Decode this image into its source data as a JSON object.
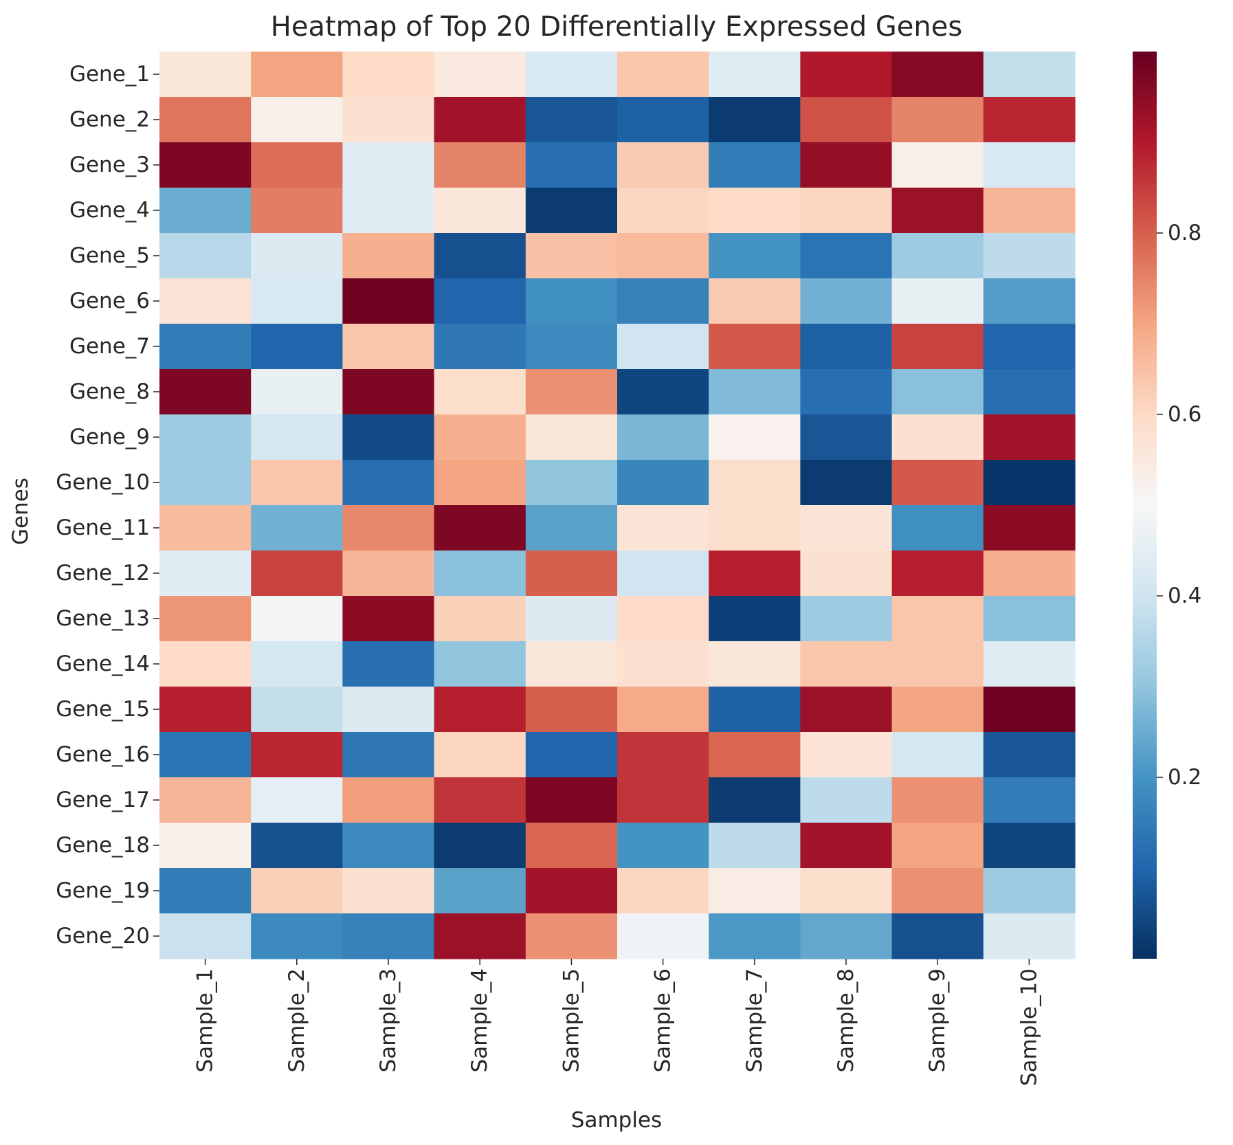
{
  "chart_data": {
    "type": "heatmap",
    "title": "Heatmap of Top 20 Differentially Expressed Genes",
    "xlabel": "Samples",
    "ylabel": "Genes",
    "x_categories": [
      "Sample_1",
      "Sample_2",
      "Sample_3",
      "Sample_4",
      "Sample_5",
      "Sample_6",
      "Sample_7",
      "Sample_8",
      "Sample_9",
      "Sample_10"
    ],
    "y_categories": [
      "Gene_1",
      "Gene_2",
      "Gene_3",
      "Gene_4",
      "Gene_5",
      "Gene_6",
      "Gene_7",
      "Gene_8",
      "Gene_9",
      "Gene_10",
      "Gene_11",
      "Gene_12",
      "Gene_13",
      "Gene_14",
      "Gene_15",
      "Gene_16",
      "Gene_17",
      "Gene_18",
      "Gene_19",
      "Gene_20"
    ],
    "values": [
      [
        0.56,
        0.7,
        0.6,
        0.55,
        0.42,
        0.64,
        0.44,
        0.9,
        0.96,
        0.38
      ],
      [
        0.77,
        0.53,
        0.58,
        0.92,
        0.07,
        0.09,
        0.02,
        0.82,
        0.75,
        0.88
      ],
      [
        0.97,
        0.78,
        0.44,
        0.75,
        0.12,
        0.63,
        0.15,
        0.94,
        0.53,
        0.42
      ],
      [
        0.25,
        0.76,
        0.44,
        0.56,
        0.02,
        0.61,
        0.6,
        0.61,
        0.93,
        0.67
      ],
      [
        0.36,
        0.43,
        0.68,
        0.06,
        0.65,
        0.66,
        0.2,
        0.13,
        0.32,
        0.37
      ],
      [
        0.57,
        0.42,
        0.99,
        0.1,
        0.19,
        0.16,
        0.63,
        0.26,
        0.46,
        0.22
      ],
      [
        0.15,
        0.1,
        0.64,
        0.14,
        0.18,
        0.4,
        0.81,
        0.09,
        0.84,
        0.1
      ],
      [
        0.97,
        0.46,
        0.97,
        0.59,
        0.73,
        0.04,
        0.28,
        0.12,
        0.29,
        0.12
      ],
      [
        0.32,
        0.41,
        0.05,
        0.68,
        0.56,
        0.27,
        0.52,
        0.07,
        0.58,
        0.92
      ],
      [
        0.32,
        0.64,
        0.12,
        0.7,
        0.3,
        0.17,
        0.59,
        0.02,
        0.81,
        0.01
      ],
      [
        0.66,
        0.26,
        0.74,
        0.97,
        0.23,
        0.57,
        0.59,
        0.57,
        0.19,
        0.95
      ],
      [
        0.44,
        0.84,
        0.67,
        0.29,
        0.8,
        0.4,
        0.89,
        0.58,
        0.89,
        0.68
      ],
      [
        0.72,
        0.49,
        0.95,
        0.62,
        0.43,
        0.6,
        0.03,
        0.32,
        0.64,
        0.29
      ],
      [
        0.6,
        0.41,
        0.12,
        0.3,
        0.56,
        0.58,
        0.56,
        0.64,
        0.64,
        0.44
      ],
      [
        0.89,
        0.38,
        0.43,
        0.89,
        0.8,
        0.69,
        0.09,
        0.93,
        0.7,
        0.99
      ],
      [
        0.13,
        0.88,
        0.14,
        0.61,
        0.1,
        0.86,
        0.79,
        0.57,
        0.41,
        0.07
      ],
      [
        0.67,
        0.45,
        0.71,
        0.86,
        0.97,
        0.86,
        0.02,
        0.37,
        0.73,
        0.15
      ],
      [
        0.53,
        0.06,
        0.18,
        0.02,
        0.79,
        0.2,
        0.37,
        0.92,
        0.7,
        0.04
      ],
      [
        0.15,
        0.62,
        0.58,
        0.23,
        0.92,
        0.61,
        0.54,
        0.59,
        0.73,
        0.32
      ],
      [
        0.39,
        0.18,
        0.16,
        0.93,
        0.73,
        0.48,
        0.21,
        0.24,
        0.06,
        0.43
      ]
    ],
    "colormap": "RdBu_r",
    "colorbar": {
      "vmin": 0.0,
      "vmax": 1.0,
      "ticks": [
        0.2,
        0.4,
        0.6,
        0.8
      ],
      "tick_labels": [
        "0.2",
        "0.4",
        "0.6",
        "0.8"
      ]
    },
    "colors": {
      "stops": [
        "#053061",
        "#2166ac",
        "#4393c3",
        "#92c5de",
        "#d1e5f0",
        "#f7f7f7",
        "#fddbc7",
        "#f4a582",
        "#d6604d",
        "#b2182b",
        "#67001f"
      ],
      "text": "#262626"
    }
  }
}
